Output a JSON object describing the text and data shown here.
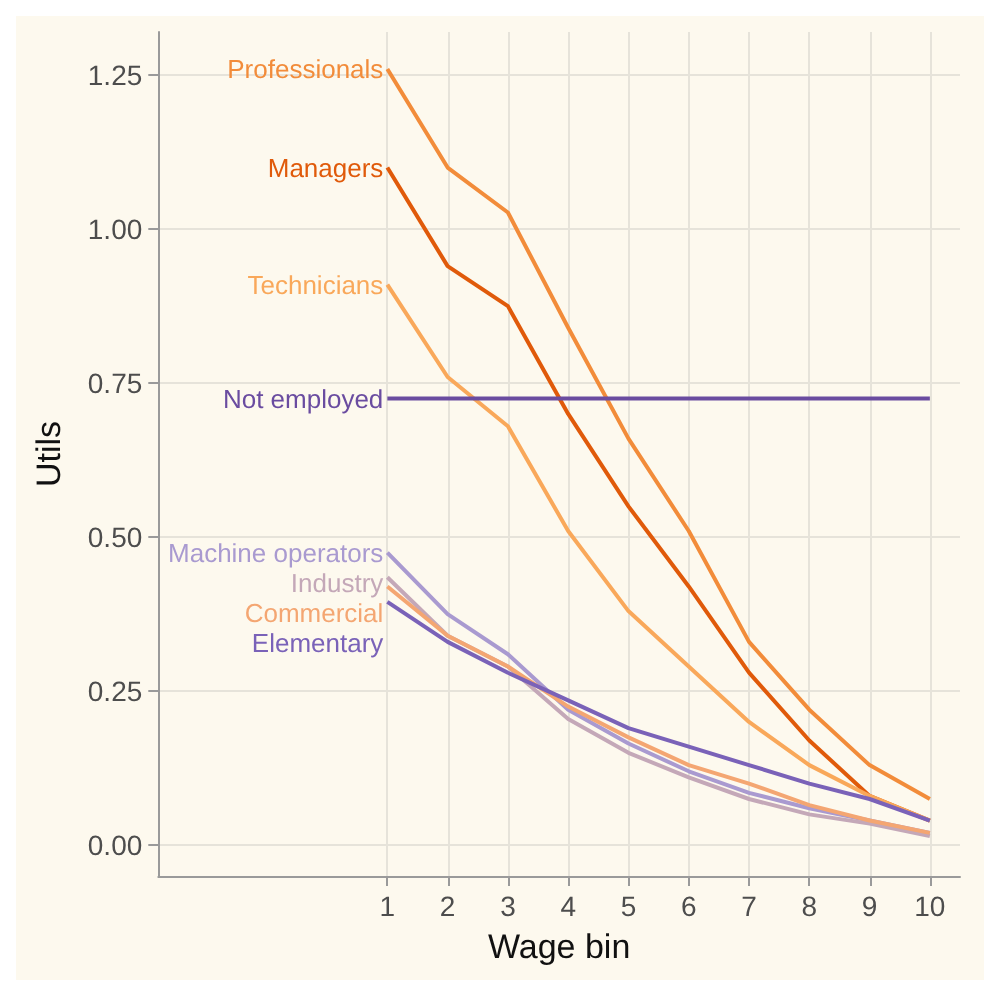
{
  "chart_data": {
    "type": "line",
    "xlabel": "Wage bin",
    "ylabel": "Utils",
    "x": [
      1,
      2,
      3,
      4,
      5,
      6,
      7,
      8,
      9,
      10
    ],
    "xlim": [
      -2.8,
      10.5
    ],
    "xticks": [
      1,
      2,
      3,
      4,
      5,
      6,
      7,
      8,
      9,
      10
    ],
    "ylim": [
      -0.05,
      1.32
    ],
    "yticks": [
      {
        "value": 0,
        "label": "0.00"
      },
      {
        "value": 0.25,
        "label": "0.25"
      },
      {
        "value": 0.5,
        "label": "0.50"
      },
      {
        "value": 0.75,
        "label": "0.75"
      },
      {
        "value": 1,
        "label": "1.00"
      },
      {
        "value": 1.25,
        "label": "1.25"
      }
    ],
    "grid": true,
    "legend": false,
    "marker": "none",
    "line_style": "solid",
    "series": [
      {
        "name": "Professionals",
        "color": "#f28c3a",
        "values": [
          1.26,
          1.1,
          1.027,
          0.84,
          0.66,
          0.51,
          0.33,
          0.22,
          0.13,
          0.075
        ]
      },
      {
        "name": "Managers",
        "color": "#e05a0a",
        "values": [
          1.1,
          0.94,
          0.875,
          0.7,
          0.55,
          0.42,
          0.28,
          0.17,
          0.08,
          0.04
        ]
      },
      {
        "name": "Technicians",
        "color": "#f9a85a",
        "values": [
          0.91,
          0.76,
          0.68,
          0.51,
          0.38,
          0.29,
          0.2,
          0.13,
          0.08,
          0.04
        ]
      },
      {
        "name": "Not employed",
        "color": "#6a4ca0",
        "values": [
          0.725,
          0.725,
          0.725,
          0.725,
          0.725,
          0.725,
          0.725,
          0.725,
          0.725,
          0.725
        ]
      },
      {
        "name": "Machine operators",
        "color": "#a99ad0",
        "values": [
          0.475,
          0.375,
          0.31,
          0.22,
          0.165,
          0.12,
          0.085,
          0.06,
          0.04,
          0.02
        ]
      },
      {
        "name": "Industry",
        "color": "#c4a8b8",
        "values": [
          0.435,
          0.34,
          0.29,
          0.205,
          0.15,
          0.11,
          0.075,
          0.05,
          0.035,
          0.015
        ]
      },
      {
        "name": "Commercial",
        "color": "#f4a672",
        "values": [
          0.42,
          0.34,
          0.29,
          0.225,
          0.175,
          0.13,
          0.1,
          0.065,
          0.04,
          0.02
        ]
      },
      {
        "name": "Elementary",
        "color": "#7a62b8",
        "values": [
          0.395,
          0.33,
          0.28,
          0.235,
          0.19,
          0.16,
          0.13,
          0.1,
          0.075,
          0.04
        ]
      }
    ]
  }
}
